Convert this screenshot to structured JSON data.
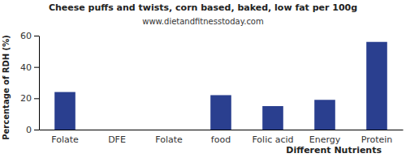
{
  "chart_data": {
    "type": "bar",
    "title": "Cheese puffs and twists, corn based, baked, low fat per 100g",
    "subtitle": "www.dietandfitnesstoday.com",
    "x_label": "Different Nutrients",
    "y_label": "Percentage of RDH (%)",
    "categories": [
      "Folate",
      "DFE",
      "Folate",
      "food",
      "Folic acid",
      "Energy",
      "Protein"
    ],
    "values": [
      24,
      0,
      0,
      22,
      15,
      19,
      56
    ],
    "color": "#2a3f8f",
    "ylim": [
      0,
      60
    ],
    "yticks": [
      0,
      20,
      40,
      60
    ],
    "grid": false
  }
}
